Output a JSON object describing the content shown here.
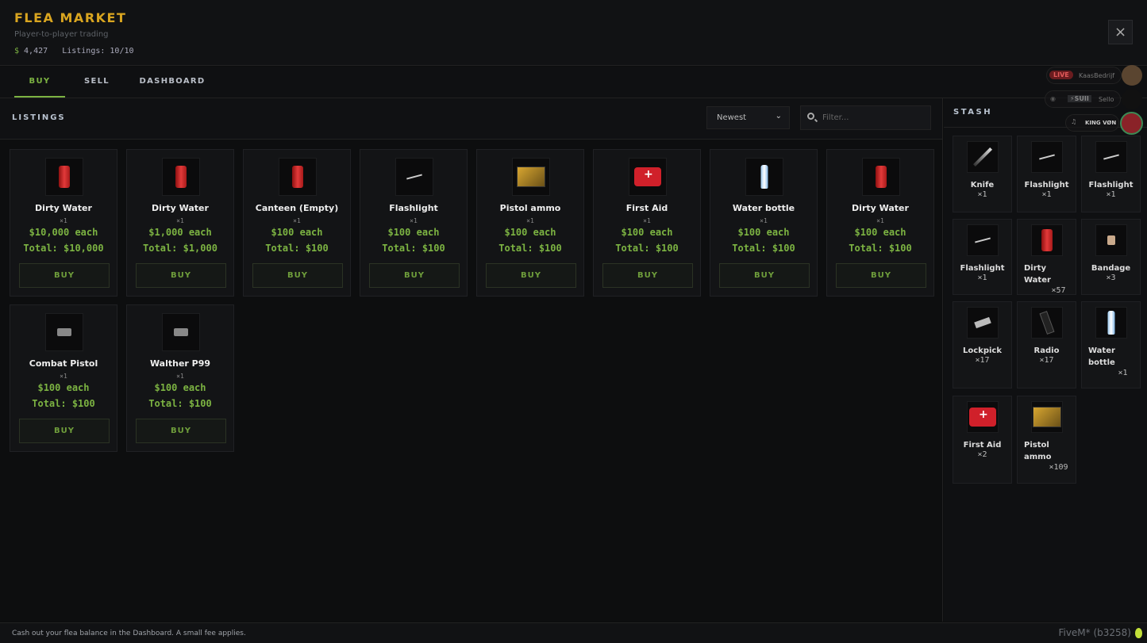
{
  "header": {
    "title": "FLEA MARKET",
    "subtitle": "Player-to-player trading",
    "currency_symbol": "$",
    "balance": "4,427",
    "listings": "Listings: 10/10",
    "close_icon": "×"
  },
  "tabs": [
    {
      "label": "BUY",
      "active": true
    },
    {
      "label": "SELL"
    },
    {
      "label": "DASHBOARD"
    }
  ],
  "listings": {
    "heading": "LISTINGS",
    "sort": {
      "selected": "Newest",
      "chevron": "⌄"
    },
    "filter": {
      "placeholder": "Filter..."
    },
    "buy_label": "BUY",
    "items": [
      {
        "name": "Dirty Water",
        "qty": "×1",
        "each": "$10,000 each",
        "total": "Total: $10,000",
        "icon": "can"
      },
      {
        "name": "Dirty Water",
        "qty": "×1",
        "each": "$1,000 each",
        "total": "Total: $1,000",
        "icon": "can"
      },
      {
        "name": "Canteen (Empty)",
        "qty": "×1",
        "each": "$100 each",
        "total": "Total: $100",
        "icon": "can"
      },
      {
        "name": "Flashlight",
        "qty": "×1",
        "each": "$100 each",
        "total": "Total: $100",
        "icon": "flash"
      },
      {
        "name": "Pistol ammo",
        "qty": "×1",
        "each": "$100 each",
        "total": "Total: $100",
        "icon": "ammo"
      },
      {
        "name": "First Aid",
        "qty": "×1",
        "each": "$100 each",
        "total": "Total: $100",
        "icon": "aid"
      },
      {
        "name": "Water bottle",
        "qty": "×1",
        "each": "$100 each",
        "total": "Total: $100",
        "icon": "bottle"
      },
      {
        "name": "Dirty Water",
        "qty": "×1",
        "each": "$100 each",
        "total": "Total: $100",
        "icon": "can"
      },
      {
        "name": "Combat Pistol",
        "qty": "×1",
        "each": "$100 each",
        "total": "Total: $100",
        "icon": "pistol"
      },
      {
        "name": "Walther P99",
        "qty": "×1",
        "each": "$100 each",
        "total": "Total: $100",
        "icon": "pistol"
      }
    ]
  },
  "stash": {
    "heading": "STASH",
    "items": [
      {
        "name": "Knife",
        "qty": "×1",
        "icon": "knife"
      },
      {
        "name": "Flashlight",
        "qty": "×1",
        "icon": "flash"
      },
      {
        "name": "Flashlight",
        "qty": "×1",
        "icon": "flash"
      },
      {
        "name": "Flashlight",
        "qty": "×1",
        "icon": "flash"
      },
      {
        "name": "Dirty Water",
        "qty": "×57",
        "icon": "can"
      },
      {
        "name": "Bandage",
        "qty": "×3",
        "icon": "band"
      },
      {
        "name": "Lockpick",
        "qty": "×17",
        "icon": "lock"
      },
      {
        "name": "Radio",
        "qty": "×17",
        "icon": "radio"
      },
      {
        "name": "Water bottle",
        "qty": "×1",
        "icon": "bottle"
      },
      {
        "name": "First Aid",
        "qty": "×2",
        "icon": "aid"
      },
      {
        "name": "Pistol ammo",
        "qty": "×109",
        "icon": "ammo"
      }
    ]
  },
  "streams": [
    {
      "badge": "LIVE",
      "name": "KaasBedrijf"
    },
    {
      "badge": "⚡SUII",
      "name": "Sello"
    },
    {
      "badge": "",
      "name": "KING VØN"
    }
  ],
  "footer": {
    "hint": "Cash out your flea balance in the Dashboard. A small fee applies.",
    "build": "FiveM* (b3258)"
  },
  "colors": {
    "accent": "#7cb342",
    "title": "#d9a520",
    "background": "#0c0d0e"
  }
}
